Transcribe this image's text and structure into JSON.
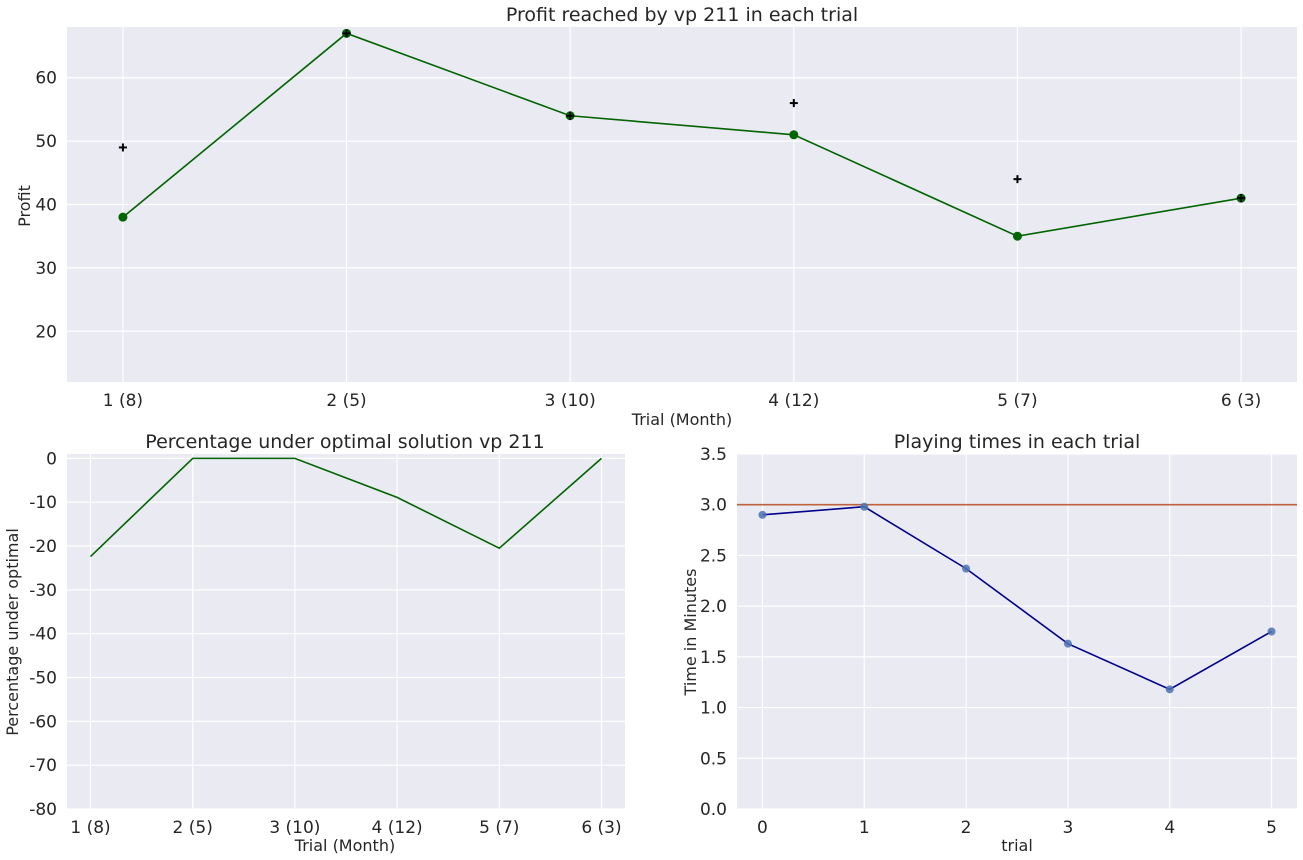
{
  "charts": {
    "profit": {
      "title": "Profit reached by vp 211 in each trial",
      "xlabel": "Trial (Month)",
      "ylabel": "Profit"
    },
    "percentage": {
      "title": "Percentage under optimal solution vp 211",
      "xlabel": "Trial (Month)",
      "ylabel": "Percentage under optimal"
    },
    "time": {
      "title": "Playing times in each trial",
      "xlabel": "trial",
      "ylabel": "Time in Minutes"
    }
  },
  "chart_data": [
    {
      "type": "line",
      "title": "Profit reached by vp 211 in each trial",
      "xlabel": "Trial (Month)",
      "ylabel": "Profit",
      "categories": [
        "1 (8)",
        "2 (5)",
        "3 (10)",
        "4 (12)",
        "5 (7)",
        "6 (3)"
      ],
      "series": [
        {
          "values": [
            38,
            67,
            54,
            51,
            35,
            41
          ],
          "color": "#006400",
          "style": "line-with-markers"
        },
        {
          "values": [
            49,
            67,
            54,
            56,
            44,
            41
          ],
          "color": "#000000",
          "style": "plus-markers"
        }
      ],
      "ylim": [
        12,
        68
      ],
      "yticks": [
        20,
        30,
        40,
        50,
        60
      ],
      "grid": true
    },
    {
      "type": "line",
      "title": "Percentage under optimal solution vp 211",
      "xlabel": "Trial (Month)",
      "ylabel": "Percentage under optimal",
      "categories": [
        "1 (8)",
        "2 (5)",
        "3 (10)",
        "4 (12)",
        "5 (7)",
        "6 (3)"
      ],
      "series": [
        {
          "values": [
            -22.4,
            0,
            0,
            -8.9,
            -20.5,
            0
          ],
          "color": "#006400"
        }
      ],
      "ylim": [
        -80,
        1
      ],
      "yticks": [
        0,
        -10,
        -20,
        -30,
        -40,
        -50,
        -60,
        -70,
        -80
      ],
      "grid": true
    },
    {
      "type": "line",
      "title": "Playing times in each trial",
      "xlabel": "trial",
      "ylabel": "Time in Minutes",
      "x": [
        0,
        1,
        2,
        3,
        4,
        5
      ],
      "series": [
        {
          "values": [
            2.9,
            2.98,
            2.37,
            1.63,
            1.18,
            1.75
          ],
          "color": "#00008b",
          "marker_color": "#4c72b0"
        }
      ],
      "reference_line": {
        "y": 3.0,
        "color": "#c0623e"
      },
      "ylim": [
        0,
        3.5
      ],
      "yticks": [
        0.0,
        0.5,
        1.0,
        1.5,
        2.0,
        2.5,
        3.0,
        3.5
      ],
      "xlim": [
        -0.25,
        5.25
      ],
      "grid": true
    }
  ]
}
